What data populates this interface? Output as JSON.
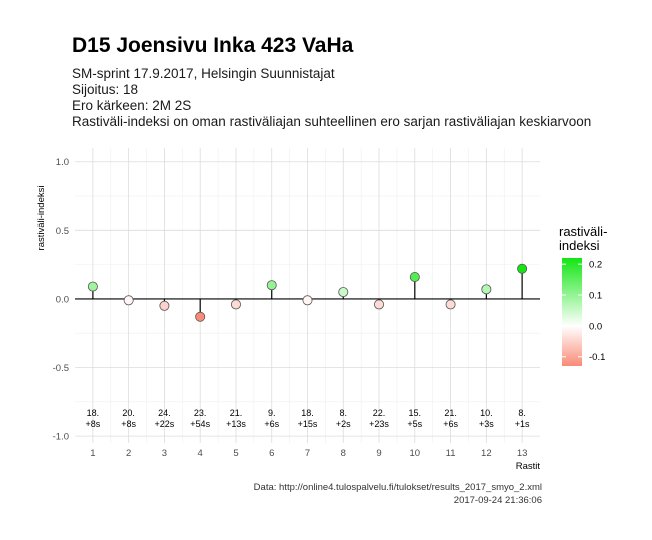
{
  "title": "D15 Joensivu Inka 423 VaHa",
  "subtitle_lines": [
    "SM-sprint 17.9.2017, Helsingin Suunnistajat",
    "Sijoitus: 18",
    "Ero kärkeen: 2M 2S",
    "Rastiväli-indeksi on oman rastiväliajan suhteellinen ero sarjan rastiväliajan keskiarvoon"
  ],
  "caption_lines": [
    "Data: http://online4.tulospalvelu.fi/tulokset/results_2017_smyo_2.xml",
    "2017-09-24 21:36:06"
  ],
  "chart_data": {
    "type": "lollipop",
    "title": "D15 Joensivu Inka 423 VaHa",
    "xlabel": "Rastit",
    "ylabel": "rastiväli-indeksi",
    "x": [
      1,
      2,
      3,
      4,
      5,
      6,
      7,
      8,
      9,
      10,
      11,
      12,
      13
    ],
    "values": [
      0.09,
      -0.01,
      -0.05,
      -0.13,
      -0.04,
      0.1,
      -0.01,
      0.05,
      -0.04,
      0.16,
      -0.04,
      0.07,
      0.22
    ],
    "point_labels": [
      [
        "18.",
        "+8s"
      ],
      [
        "20.",
        "+8s"
      ],
      [
        "24.",
        "+22s"
      ],
      [
        "23.",
        "+54s"
      ],
      [
        "21.",
        "+13s"
      ],
      [
        "9.",
        "+6s"
      ],
      [
        "18.",
        "+15s"
      ],
      [
        "8.",
        "+2s"
      ],
      [
        "22.",
        "+23s"
      ],
      [
        "15.",
        "+5s"
      ],
      [
        "21.",
        "+6s"
      ],
      [
        "10.",
        "+3s"
      ],
      [
        "8.",
        "+1s"
      ]
    ],
    "ylim": [
      -1.05,
      1.1
    ],
    "yticks": [
      -1.0,
      -0.5,
      0.0,
      0.5,
      1.0
    ],
    "ytick_labels": [
      "-1.0",
      "-0.5",
      "0.0",
      "0.5",
      "1.0"
    ],
    "xticks": [
      "1",
      "2",
      "3",
      "4",
      "5",
      "6",
      "7",
      "8",
      "9",
      "10",
      "11",
      "12",
      "13"
    ],
    "grid": true,
    "colors": {
      "negative": "#f98b78",
      "zero": "#ffffff",
      "positive": "#13e613"
    },
    "legend": {
      "title": "rastiväli-\nindeksi",
      "position": "right",
      "ticks": [
        0.2,
        0.1,
        0.0,
        -0.1
      ],
      "tick_labels": [
        "0.2",
        "0.1",
        "0.0",
        "-0.1"
      ],
      "range": [
        -0.13,
        0.22
      ]
    }
  }
}
